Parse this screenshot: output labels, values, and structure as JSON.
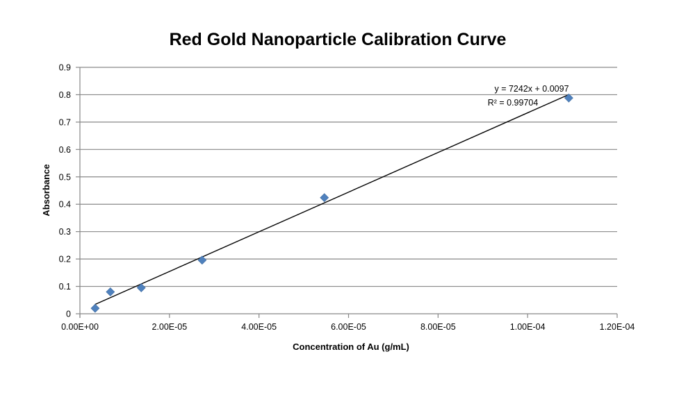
{
  "chart_data": {
    "type": "scatter",
    "title": "Red Gold Nanoparticle Calibration Curve",
    "xlabel": "Concentration  of Au (g/mL)",
    "ylabel": "Absorbance",
    "xlim": [
      0,
      0.00012
    ],
    "ylim": [
      0,
      0.9
    ],
    "x_ticks": [
      0,
      2e-05,
      4e-05,
      6e-05,
      8e-05,
      0.0001,
      0.00012
    ],
    "x_tick_labels": [
      "0.00E+00",
      "2.00E-05",
      "4.00E-05",
      "6.00E-05",
      "8.00E-05",
      "1.00E-04",
      "1.20E-04"
    ],
    "y_ticks": [
      0,
      0.1,
      0.2,
      0.3,
      0.4,
      0.5,
      0.6,
      0.7,
      0.8,
      0.9
    ],
    "y_tick_labels": [
      "0",
      "0.1",
      "0.2",
      "0.3",
      "0.4",
      "0.5",
      "0.6",
      "0.7",
      "0.8",
      "0.9"
    ],
    "grid": "horizontal",
    "series": [
      {
        "name": "Absorbance",
        "marker": "diamond",
        "color": "#4F81BD",
        "x": [
          3.4e-06,
          6.8e-06,
          1.37e-05,
          2.73e-05,
          5.46e-05,
          0.0001092
        ],
        "y": [
          0.02,
          0.08,
          0.095,
          0.196,
          0.424,
          0.788
        ]
      }
    ],
    "trendline": {
      "type": "linear",
      "slope": 7242,
      "intercept": 0.0097,
      "x_range": [
        3.4e-06,
        0.0001092
      ],
      "color": "#000000",
      "equation_label": "y = 7242x + 0.0097",
      "r2_label": "R² = 0.99704"
    }
  }
}
